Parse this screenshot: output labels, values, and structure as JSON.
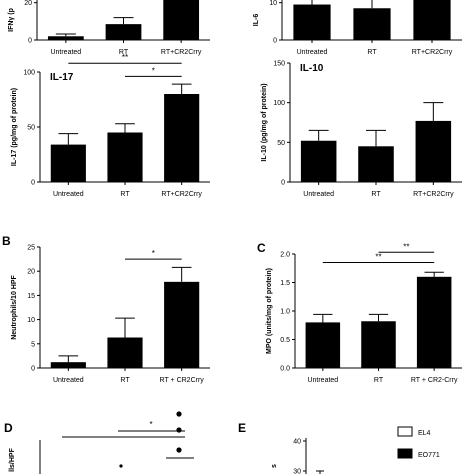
{
  "chart_data": [
    {
      "id": "ifng",
      "type": "bar",
      "panel_letter": "",
      "title": "",
      "ylabel": "IFNγ (p",
      "ylim": [
        0,
        30
      ],
      "yticks": [
        0,
        20
      ],
      "categories": [
        "Untreated",
        "RT",
        "RT+CR2Crry"
      ],
      "values": [
        2,
        8.5,
        24
      ],
      "errors": [
        1.2,
        3.5,
        5
      ],
      "sig": []
    },
    {
      "id": "il6",
      "type": "bar",
      "panel_letter": "",
      "title": "",
      "ylabel": "IL-6",
      "ylim": [
        0,
        15
      ],
      "yticks": [
        0,
        10
      ],
      "categories": [
        "Untreated",
        "RT",
        "RT+CR2Crry"
      ],
      "values": [
        9.5,
        8.5,
        14
      ],
      "errors": [
        2.5,
        3,
        1.5
      ],
      "sig": []
    },
    {
      "id": "il17",
      "type": "bar",
      "panel_letter": "",
      "title": "IL-17",
      "ylabel": "IL-17 (pg/mg of protein)",
      "ylim": [
        0,
        100
      ],
      "yticks": [
        0,
        50,
        100
      ],
      "categories": [
        "Untreated",
        "RT",
        "RT+CR2Crry"
      ],
      "values": [
        34,
        45,
        80
      ],
      "errors": [
        10,
        8,
        9
      ],
      "sig": [
        {
          "from": 0,
          "to": 2,
          "label": "**",
          "y": 108
        },
        {
          "from": 1,
          "to": 2,
          "label": "*",
          "y": 96
        }
      ]
    },
    {
      "id": "il10",
      "type": "bar",
      "panel_letter": "",
      "title": "IL-10",
      "ylabel": "IL-10 (pg/mg of protein)",
      "ylim": [
        0,
        150
      ],
      "yticks": [
        0,
        50,
        100,
        150
      ],
      "categories": [
        "Untreated",
        "RT",
        "RT+CR2Crry"
      ],
      "values": [
        52,
        45,
        77
      ],
      "errors": [
        13,
        20,
        23
      ],
      "sig": []
    },
    {
      "id": "neut",
      "type": "bar",
      "panel_letter": "B",
      "title": "",
      "ylabel": "Neutrophils/10 HPF",
      "ylim": [
        0,
        25
      ],
      "yticks": [
        0,
        5,
        10,
        15,
        20,
        25
      ],
      "categories": [
        "Untreated",
        "RT",
        "RT + CR2Crry"
      ],
      "values": [
        1.2,
        6.3,
        17.8
      ],
      "errors": [
        1.3,
        4,
        3
      ],
      "sig": [
        {
          "from": 1,
          "to": 2,
          "label": "*",
          "y": 22.5
        }
      ]
    },
    {
      "id": "mpo",
      "type": "bar",
      "panel_letter": "C",
      "title": "",
      "ylabel": "MPO (units/mg of protein)",
      "ylim": [
        0,
        2.0
      ],
      "yticks": [
        0.0,
        0.5,
        1.0,
        1.5,
        2.0
      ],
      "yformat": 1,
      "categories": [
        "Untreated",
        "RT",
        "RT + CR2-Crry"
      ],
      "values": [
        0.8,
        0.82,
        1.6
      ],
      "errors": [
        0.14,
        0.12,
        0.08
      ],
      "sig": [
        {
          "from": 0,
          "to": 2,
          "label": "**",
          "y": 1.85
        },
        {
          "from": 1,
          "to": 2,
          "label": "**",
          "y": 2.03
        }
      ]
    },
    {
      "id": "cellshpf",
      "type": "scatter",
      "panel_letter": "D",
      "title": "",
      "ylabel": "lls/HPF",
      "sig": [
        {
          "label": "*"
        }
      ],
      "points_y": [
        51,
        47,
        42
      ],
      "mean_y": 40
    },
    {
      "id": "eo771",
      "type": "bar",
      "panel_letter": "E",
      "title": "",
      "ylabel": "s",
      "yticks": [
        30,
        40
      ],
      "legend": [
        {
          "name": "EL4",
          "color": "#ffffff"
        },
        {
          "name": "EO771",
          "color": "#000000"
        }
      ],
      "values": [
        29
      ]
    }
  ]
}
